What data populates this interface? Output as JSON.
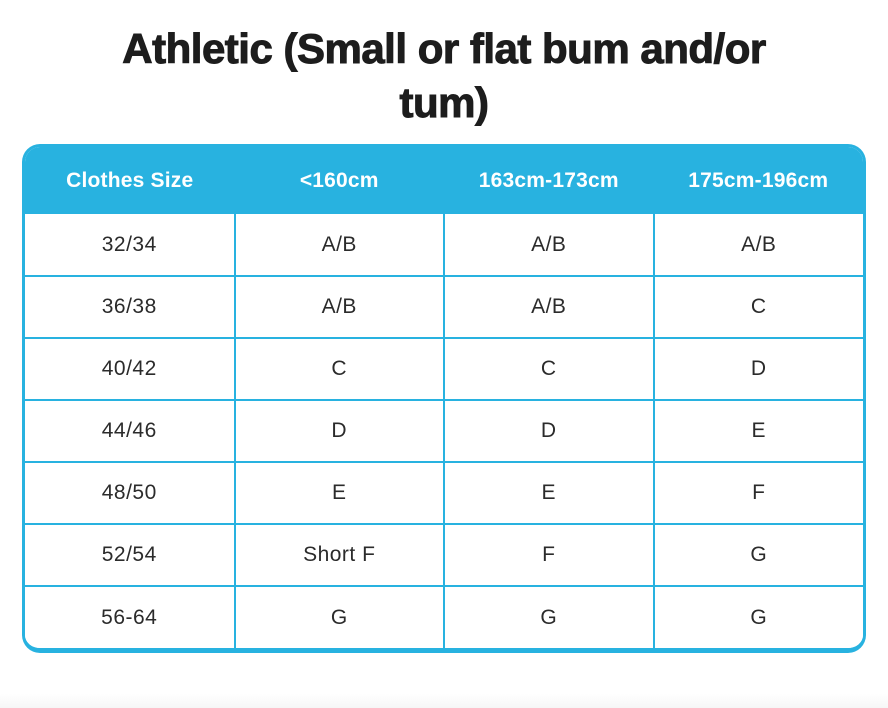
{
  "page": {
    "title_lines": [
      "Athletic (Small or flat bum and/or",
      "tum)"
    ]
  },
  "colors": {
    "accent": "#28b2e0",
    "header_text": "#ffffff",
    "cell_text": "#2b2b2b",
    "title_text": "#1d1d1d",
    "background": "#ffffff"
  },
  "chart_data": {
    "type": "table",
    "title": "Athletic (Small or flat bum and/or tum)",
    "columns": [
      "Clothes Size",
      "<160cm",
      "163cm-173cm",
      "175cm-196cm"
    ],
    "rows": [
      [
        "32/34",
        "A/B",
        "A/B",
        "A/B"
      ],
      [
        "36/38",
        "A/B",
        "A/B",
        "C"
      ],
      [
        "40/42",
        "C",
        "C",
        "D"
      ],
      [
        "44/46",
        "D",
        "D",
        "E"
      ],
      [
        "48/50",
        "E",
        "E",
        "F"
      ],
      [
        "52/54",
        "Short F",
        "F",
        "G"
      ],
      [
        "56-64",
        "G",
        "G",
        "G"
      ]
    ]
  }
}
